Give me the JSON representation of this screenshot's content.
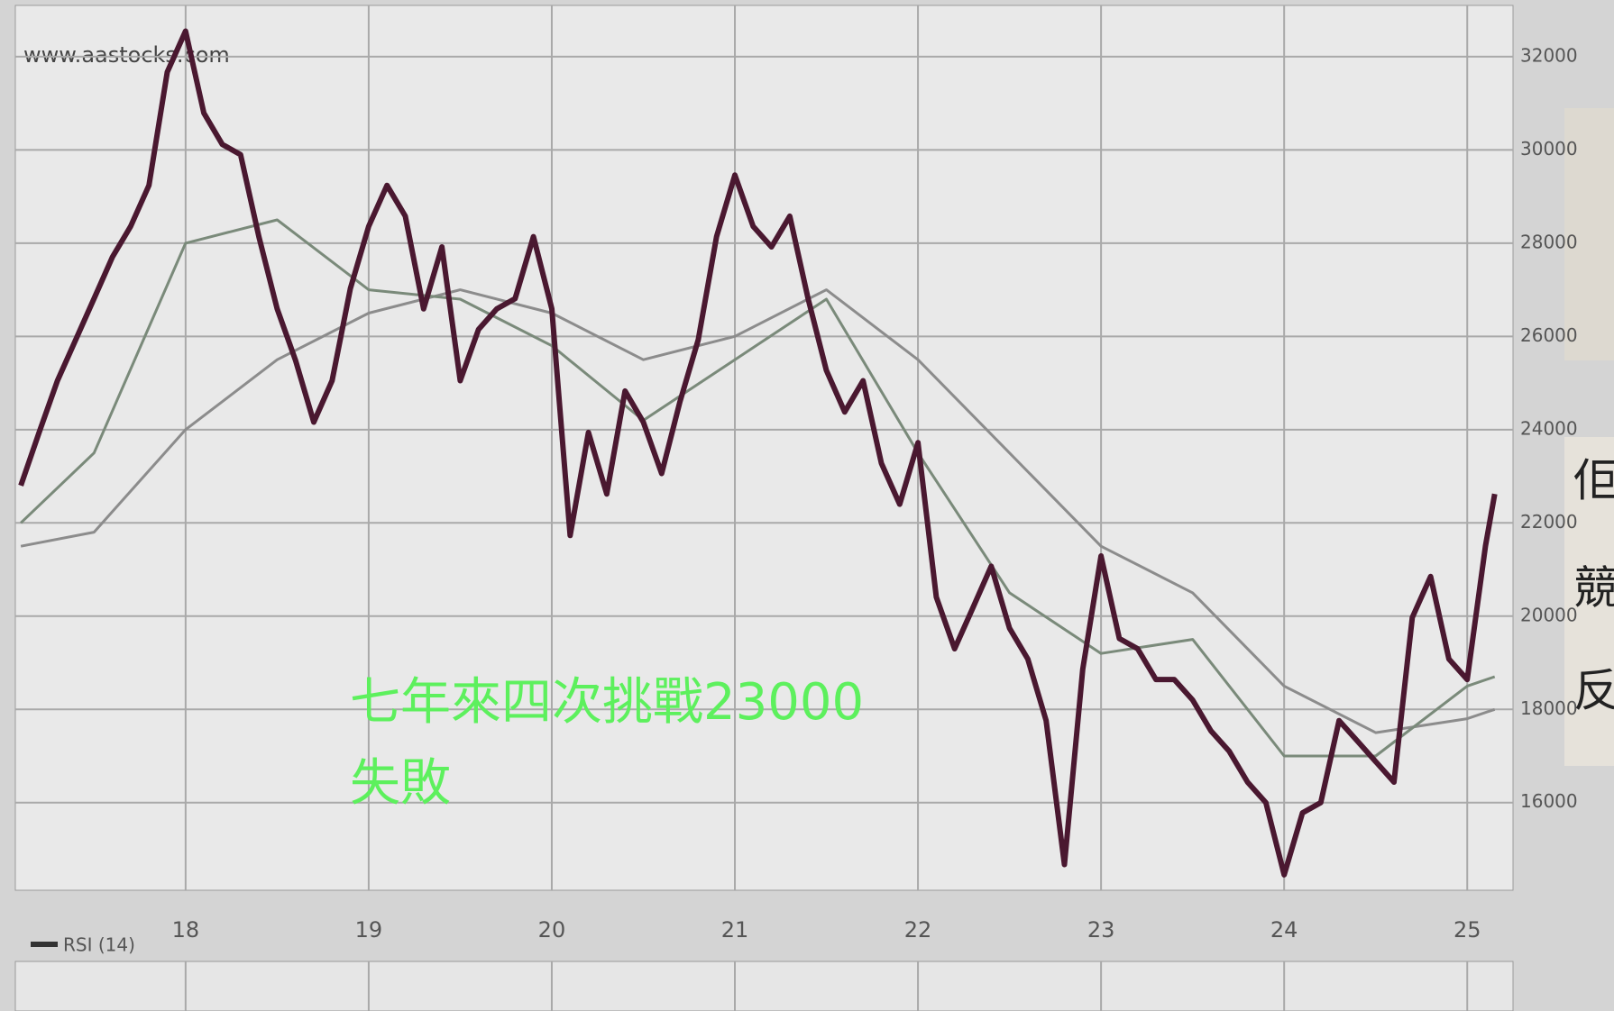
{
  "chart_data": {
    "type": "line",
    "source": "www.aastocks.com",
    "annotation": [
      "七年來四次挑戰23000",
      "失敗"
    ],
    "indicator": "RSI (14)",
    "side_text": [
      "佢",
      "競",
      "反"
    ],
    "xlim": [
      17.07,
      25.25
    ],
    "xticks": [
      18,
      19,
      20,
      21,
      22,
      23,
      24,
      25
    ],
    "ylim": [
      14120,
      33100
    ],
    "yticks": [
      16000,
      18000,
      20000,
      22000,
      24000,
      26000,
      28000,
      30000,
      32000
    ],
    "grid": true,
    "series": [
      {
        "color": "#8c8c8c",
        "x": [
          17.1,
          17.5,
          18.0,
          18.5,
          19.0,
          19.5,
          20.0,
          20.5,
          21.0,
          21.5,
          22.0,
          22.5,
          23.0,
          23.5,
          24.0,
          24.5,
          25.0,
          25.15
        ],
        "values": [
          21500,
          21800,
          24000,
          25500,
          26500,
          27000,
          26500,
          25500,
          26000,
          27000,
          25500,
          23500,
          21500,
          20500,
          18500,
          17500,
          17800,
          18000
        ]
      },
      {
        "color": "#7a8a7a",
        "x": [
          17.1,
          17.5,
          18.0,
          18.5,
          19.0,
          19.5,
          20.0,
          20.5,
          21.0,
          21.5,
          22.0,
          22.5,
          23.0,
          23.5,
          24.0,
          24.5,
          25.0,
          25.15
        ],
        "values": [
          22000,
          23500,
          28000,
          28500,
          27000,
          26800,
          25800,
          24200,
          25500,
          26800,
          23500,
          20500,
          19200,
          19500,
          17000,
          17000,
          18500,
          18700
        ]
      },
      {
        "color": "#4a1830",
        "x": [
          17.1,
          17.2,
          17.3,
          17.4,
          17.5,
          17.6,
          17.7,
          17.8,
          17.9,
          18.0,
          18.1,
          18.2,
          18.3,
          18.4,
          18.5,
          18.6,
          18.7,
          18.8,
          18.9,
          19.0,
          19.1,
          19.2,
          19.3,
          19.4,
          19.5,
          19.6,
          19.7,
          19.8,
          19.9,
          20.0,
          20.1,
          20.2,
          20.3,
          20.4,
          20.5,
          20.6,
          20.7,
          20.8,
          20.9,
          21.0,
          21.1,
          21.2,
          21.3,
          21.4,
          21.5,
          21.6,
          21.7,
          21.8,
          21.9,
          22.0,
          22.1,
          22.2,
          22.3,
          22.4,
          22.5,
          22.6,
          22.7,
          22.8,
          22.9,
          23.0,
          23.1,
          23.2,
          23.3,
          23.4,
          23.5,
          23.6,
          23.7,
          23.8,
          23.9,
          24.0,
          24.1,
          24.2,
          24.3,
          24.4,
          24.5,
          24.6,
          24.7,
          24.8,
          24.9,
          25.0,
          25.1,
          25.15
        ],
        "values": [
          22800,
          23940,
          25050,
          25930,
          26810,
          27700,
          28360,
          29240,
          31670,
          32550,
          30790,
          30120,
          29900,
          28140,
          26590,
          25490,
          24160,
          25050,
          27030,
          28360,
          29240,
          28580,
          26590,
          27920,
          25050,
          26150,
          26590,
          26810,
          28140,
          26590,
          21730,
          23940,
          22620,
          24830,
          24160,
          23060,
          24600,
          25930,
          28140,
          29460,
          28360,
          27920,
          28580,
          26810,
          25270,
          24380,
          25050,
          23280,
          22400,
          23720,
          20410,
          19300,
          20180,
          21070,
          19740,
          19080,
          17760,
          14670,
          18860,
          21290,
          19520,
          19300,
          18640,
          18640,
          18200,
          17540,
          17100,
          16440,
          16000,
          14450,
          15780,
          16000,
          17760,
          17320,
          16880,
          16440,
          19970,
          20850,
          19080,
          18640,
          21510,
          22620
        ]
      }
    ]
  }
}
